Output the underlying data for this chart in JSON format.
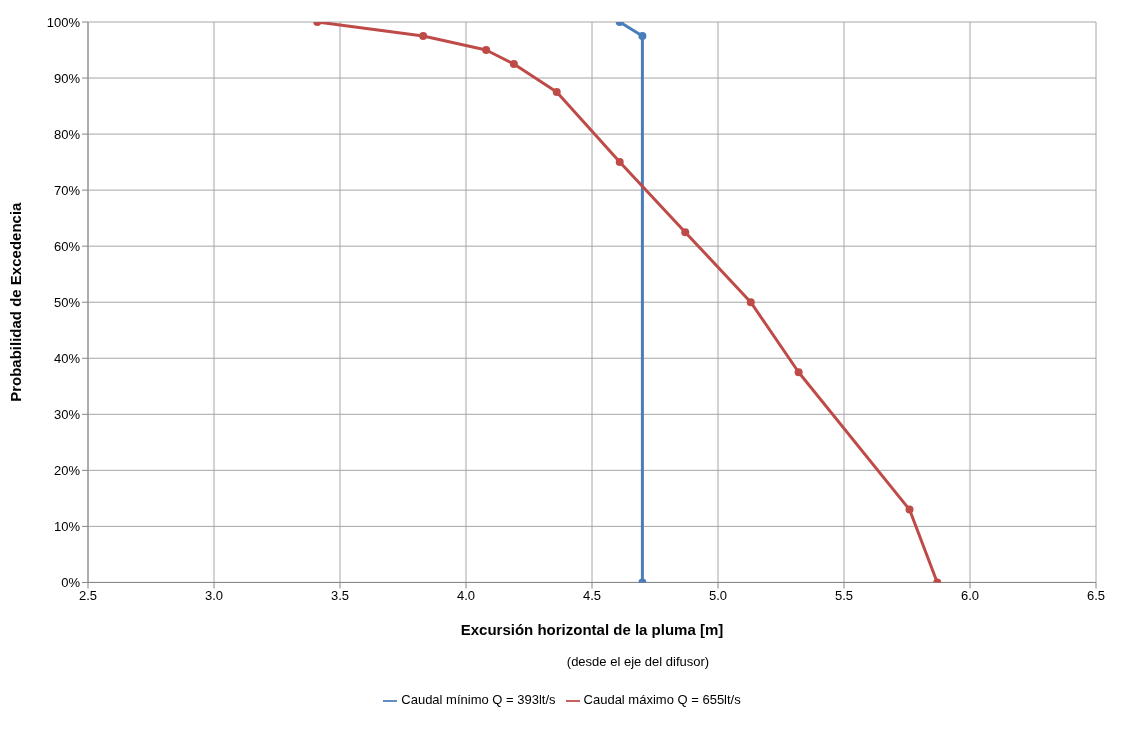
{
  "chart_data": {
    "type": "line",
    "xlabel": "Excursión horizontal de la pluma  [m]",
    "ylabel": "Probabilidad de Excedencia",
    "annotations": [
      "(desde el eje del difusor)"
    ],
    "series": [
      {
        "name": "Caudal mínimo Q = 393lt/s",
        "color": "#4a7ebb",
        "x": [
          4.61,
          4.7,
          4.7
        ],
        "values": [
          100,
          97.5,
          0
        ]
      },
      {
        "name": "Caudal máximo Q = 655lt/s",
        "color": "#be4b48",
        "x": [
          3.41,
          3.83,
          4.08,
          4.19,
          4.36,
          4.61,
          4.87,
          5.13,
          5.32,
          5.76,
          5.87
        ],
        "values": [
          100,
          97.5,
          95,
          92.5,
          87.5,
          75,
          62.5,
          50,
          37.5,
          13,
          0
        ]
      }
    ],
    "xlim": [
      2.5,
      6.5
    ],
    "xticks": [
      {
        "value": 2.5,
        "label": "2.5"
      },
      {
        "value": 3,
        "label": "3.0"
      },
      {
        "value": 3.5,
        "label": "3.5"
      },
      {
        "value": 4,
        "label": "4.0"
      },
      {
        "value": 4.5,
        "label": "4.5"
      },
      {
        "value": 5,
        "label": "5.0"
      },
      {
        "value": 5.5,
        "label": "5.5"
      },
      {
        "value": 6,
        "label": "6.0"
      },
      {
        "value": 6.5,
        "label": "6.5"
      }
    ],
    "ylim": [
      0,
      100
    ],
    "yticks": [
      {
        "value": 0,
        "label": "0%"
      },
      {
        "value": 10,
        "label": "10%"
      },
      {
        "value": 20,
        "label": "20%"
      },
      {
        "value": 30,
        "label": "30%"
      },
      {
        "value": 40,
        "label": "40%"
      },
      {
        "value": 50,
        "label": "50%"
      },
      {
        "value": 60,
        "label": "60%"
      },
      {
        "value": 70,
        "label": "70%"
      },
      {
        "value": 80,
        "label": "80%"
      },
      {
        "value": 90,
        "label": "90%"
      },
      {
        "value": 100,
        "label": "100%"
      }
    ],
    "grid": true,
    "legend": "bottom",
    "marker": "circle",
    "line_style": "solid"
  }
}
